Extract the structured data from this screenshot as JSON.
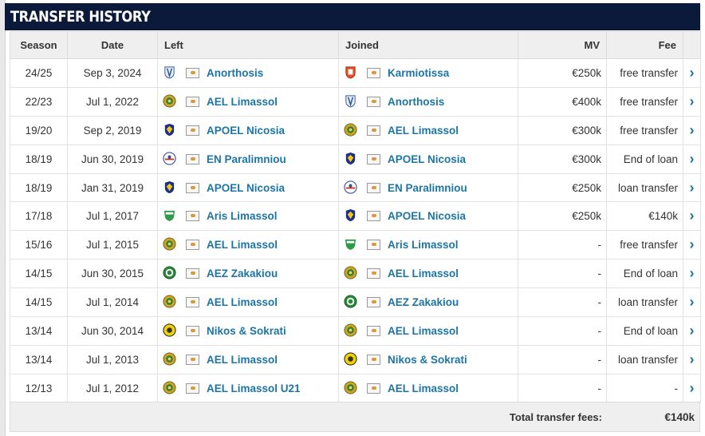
{
  "title": "TRANSFER HISTORY",
  "columns": {
    "season": "Season",
    "date": "Date",
    "left": "Left",
    "joined": "Joined",
    "mv": "MV",
    "fee": "Fee"
  },
  "rows": [
    {
      "season": "24/25",
      "date": "Sep 3, 2024",
      "left": "Anorthosis",
      "left_crest": "anorthosis-crest",
      "joined": "Karmiotissa",
      "joined_crest": "karmiotissa-crest",
      "mv": "€250k",
      "fee": "free transfer"
    },
    {
      "season": "22/23",
      "date": "Jul 1, 2022",
      "left": "AEL Limassol",
      "left_crest": "ael-crest",
      "joined": "Anorthosis",
      "joined_crest": "anorthosis-crest",
      "mv": "€400k",
      "fee": "free transfer"
    },
    {
      "season": "19/20",
      "date": "Sep 2, 2019",
      "left": "APOEL Nicosia",
      "left_crest": "apoel-crest",
      "joined": "AEL Limassol",
      "joined_crest": "ael-crest",
      "mv": "€300k",
      "fee": "free transfer"
    },
    {
      "season": "18/19",
      "date": "Jun 30, 2019",
      "left": "EN Paralimniou",
      "left_crest": "paralimni-crest",
      "joined": "APOEL Nicosia",
      "joined_crest": "apoel-crest",
      "mv": "€300k",
      "fee": "End of loan"
    },
    {
      "season": "18/19",
      "date": "Jan 31, 2019",
      "left": "APOEL Nicosia",
      "left_crest": "apoel-crest",
      "joined": "EN Paralimniou",
      "joined_crest": "paralimni-crest",
      "mv": "€250k",
      "fee": "loan transfer"
    },
    {
      "season": "17/18",
      "date": "Jul 1, 2017",
      "left": "Aris Limassol",
      "left_crest": "aris-crest",
      "joined": "APOEL Nicosia",
      "joined_crest": "apoel-crest",
      "mv": "€250k",
      "fee": "€140k"
    },
    {
      "season": "15/16",
      "date": "Jul 1, 2015",
      "left": "AEL Limassol",
      "left_crest": "ael-crest",
      "joined": "Aris Limassol",
      "joined_crest": "aris-crest",
      "mv": "-",
      "fee": "free transfer"
    },
    {
      "season": "14/15",
      "date": "Jun 30, 2015",
      "left": "AEZ Zakakiou",
      "left_crest": "aez-crest",
      "joined": "AEL Limassol",
      "joined_crest": "ael-crest",
      "mv": "-",
      "fee": "End of loan"
    },
    {
      "season": "14/15",
      "date": "Jul 1, 2014",
      "left": "AEL Limassol",
      "left_crest": "ael-crest",
      "joined": "AEZ Zakakiou",
      "joined_crest": "aez-crest",
      "mv": "-",
      "fee": "loan transfer"
    },
    {
      "season": "13/14",
      "date": "Jun 30, 2014",
      "left": "Nikos & Sokrati",
      "left_crest": "nikos-crest",
      "joined": "AEL Limassol",
      "joined_crest": "ael-crest",
      "mv": "-",
      "fee": "End of loan"
    },
    {
      "season": "13/14",
      "date": "Jul 1, 2013",
      "left": "AEL Limassol",
      "left_crest": "ael-crest",
      "joined": "Nikos & Sokrati",
      "joined_crest": "nikos-crest",
      "mv": "-",
      "fee": "loan transfer"
    },
    {
      "season": "12/13",
      "date": "Jul 1, 2012",
      "left": "AEL Limassol U21",
      "left_crest": "ael-crest",
      "joined": "AEL Limassol",
      "joined_crest": "ael-crest",
      "mv": "-",
      "fee": "-"
    }
  ],
  "footer": {
    "label": "Total transfer fees:",
    "value": "€140k"
  },
  "colors": {
    "header_bg": "#0b1a3a",
    "link": "#1d75a3"
  }
}
